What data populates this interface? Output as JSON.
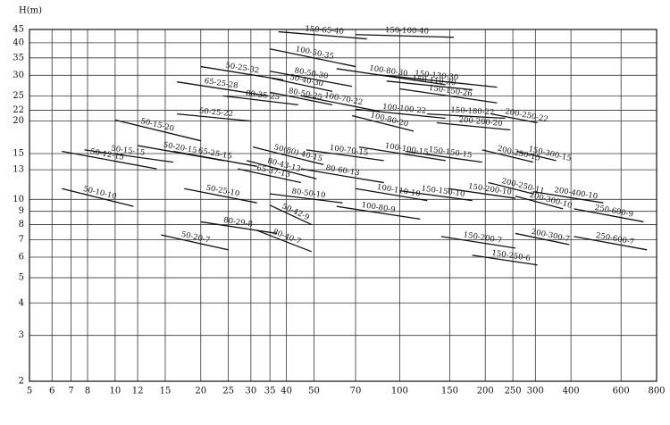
{
  "chart_data": {
    "type": "line",
    "y_label": "H(m)",
    "log_x": true,
    "log_y": true,
    "grid": true,
    "color": "#111111",
    "xlim": [
      5,
      800
    ],
    "ylim": [
      2,
      45
    ],
    "xticks": [
      5,
      6,
      7,
      8,
      10,
      12,
      15,
      20,
      25,
      30,
      35,
      40,
      50,
      70,
      100,
      150,
      200,
      250,
      300,
      400,
      600,
      800
    ],
    "yticks": [
      2,
      3,
      4,
      5,
      6,
      7,
      8,
      9,
      10,
      13,
      15,
      20,
      22,
      25,
      30,
      35,
      40,
      45
    ],
    "series": [
      {
        "name": "150-65-40",
        "x": [
          37.5,
          76.7
        ],
        "values": [
          44.1,
          41.4
        ]
      },
      {
        "name": "150-100-40",
        "x": [
          70,
          155
        ],
        "values": [
          43,
          42
        ]
      },
      {
        "name": "100-50-35",
        "x": [
          35,
          70
        ],
        "values": [
          37.9,
          32.4
        ]
      },
      {
        "name": "50-25-32",
        "x": [
          20,
          39
        ],
        "values": [
          32.4,
          28.8
        ]
      },
      {
        "name": "80-50-30",
        "x": [
          35,
          68
        ],
        "values": [
          31.1,
          27.2
        ]
      },
      {
        "name": "100-80-30",
        "x": [
          60,
          145
        ],
        "values": [
          31.8,
          27.6
        ]
      },
      {
        "name": "150-130-30",
        "x": [
          85,
          220
        ],
        "values": [
          30.1,
          27
        ]
      },
      {
        "name": "65-25-28",
        "x": [
          16.5,
          34.5
        ],
        "values": [
          28.3,
          25
        ]
      },
      {
        "name": "50-40-30",
        "x": [
          35.5,
          58
        ],
        "values": [
          29.2,
          26
        ]
      },
      {
        "name": "150-110-30",
        "x": [
          90,
          180
        ],
        "values": [
          28.5,
          26.4
        ]
      },
      {
        "name": "150-150-26",
        "x": [
          100,
          220
        ],
        "values": [
          26.6,
          23.5
        ]
      },
      {
        "name": "80-50-25",
        "x": [
          35,
          58
        ],
        "values": [
          25.8,
          23.1
        ]
      },
      {
        "name": "100-70-22",
        "x": [
          45,
          85
        ],
        "values": [
          25,
          21.8
        ]
      },
      {
        "name": "80-35-25",
        "x": [
          24,
          44
        ],
        "values": [
          25,
          23.1
        ]
      },
      {
        "name": "50-25-22",
        "x": [
          16.5,
          30
        ],
        "values": [
          21.3,
          20
        ]
      },
      {
        "name": "100-100-22",
        "x": [
          70,
          145
        ],
        "values": [
          22.2,
          20.5
        ]
      },
      {
        "name": "150-180-22",
        "x": [
          125,
          235
        ],
        "values": [
          21.3,
          20.5
        ]
      },
      {
        "name": "200-250-22",
        "x": [
          210,
          305
        ],
        "values": [
          21.3,
          19.7
        ]
      },
      {
        "name": "100-80-20",
        "x": [
          68,
          112
        ],
        "values": [
          21,
          18.3
        ]
      },
      {
        "name": "200-200-20",
        "x": [
          135,
          245
        ],
        "values": [
          19.7,
          18.5
        ]
      },
      {
        "name": "50-15-20",
        "x": [
          10,
          20
        ],
        "values": [
          20.2,
          16.8
        ]
      },
      {
        "name": "50-15-15",
        "x": [
          7.8,
          16
        ],
        "values": [
          15.5,
          13.9
        ]
      },
      {
        "name": "50-20-15",
        "x": [
          12,
          24
        ],
        "values": [
          16.1,
          14.1
        ]
      },
      {
        "name": "65-25-15",
        "x": [
          16,
          31.5
        ],
        "values": [
          15.3,
          13.4
        ]
      },
      {
        "name": "50-12-15",
        "x": [
          6.5,
          14
        ],
        "values": [
          15.3,
          13.1
        ]
      },
      {
        "name": "50(80)-40-15",
        "x": [
          30.5,
          54
        ],
        "values": [
          15.9,
          13.6
        ]
      },
      {
        "name": "100-70-15",
        "x": [
          47,
          88
        ],
        "values": [
          15.5,
          14.1
        ]
      },
      {
        "name": "100-100-15",
        "x": [
          72,
          145
        ],
        "values": [
          15.9,
          14.1
        ]
      },
      {
        "name": "150-150-15",
        "x": [
          105,
          195
        ],
        "values": [
          15.3,
          13.9
        ]
      },
      {
        "name": "200-250-15",
        "x": [
          195,
          295
        ],
        "values": [
          15.5,
          13.9
        ]
      },
      {
        "name": "150-300-15",
        "x": [
          258,
          355
        ],
        "values": [
          15.3,
          14.1
        ]
      },
      {
        "name": "80-43-13",
        "x": [
          29,
          51
        ],
        "values": [
          14.1,
          12
        ]
      },
      {
        "name": "65-37-13",
        "x": [
          27,
          45
        ],
        "values": [
          13.1,
          11.6
        ]
      },
      {
        "name": "80-60-13",
        "x": [
          45,
          88
        ],
        "values": [
          13.1,
          11.6
        ]
      },
      {
        "name": "80-50-10",
        "x": [
          35,
          63
        ],
        "values": [
          10.5,
          9.7
        ]
      },
      {
        "name": "50-25-10",
        "x": [
          17.5,
          31.5
        ],
        "values": [
          11,
          9.7
        ]
      },
      {
        "name": "50-10-10",
        "x": [
          6.5,
          11.6
        ],
        "values": [
          11,
          9.4
        ]
      },
      {
        "name": "100-110-10",
        "x": [
          70,
          125
        ],
        "values": [
          11,
          9.9
        ]
      },
      {
        "name": "150-150-10",
        "x": [
          100,
          180
        ],
        "values": [
          10.8,
          9.9
        ]
      },
      {
        "name": "150-200-10",
        "x": [
          148,
          255
        ],
        "values": [
          11,
          10.1
        ]
      },
      {
        "name": "200-250-11",
        "x": [
          205,
          295
        ],
        "values": [
          11.6,
          10.5
        ]
      },
      {
        "name": "200-300-10",
        "x": [
          255,
          375
        ],
        "values": [
          10.3,
          9.2
        ]
      },
      {
        "name": "200-400-10",
        "x": [
          295,
          520
        ],
        "values": [
          10.7,
          9.7
        ]
      },
      {
        "name": "50-42-9",
        "x": [
          35,
          49
        ],
        "values": [
          9.5,
          8
        ]
      },
      {
        "name": "100-80-9",
        "x": [
          60,
          118
        ],
        "values": [
          9.4,
          8.4
        ]
      },
      {
        "name": "250-600-9",
        "x": [
          410,
          720
        ],
        "values": [
          9.2,
          8.2
        ]
      },
      {
        "name": "80-29-8",
        "x": [
          20,
          37
        ],
        "values": [
          8.2,
          7.4
        ]
      },
      {
        "name": "80-40-7",
        "x": [
          31.5,
          49
        ],
        "values": [
          7.6,
          6.3
        ]
      },
      {
        "name": "50-20-7",
        "x": [
          14.5,
          25
        ],
        "values": [
          7.3,
          6.4
        ]
      },
      {
        "name": "150-200-7",
        "x": [
          140,
          255
        ],
        "values": [
          7.2,
          6.5
        ]
      },
      {
        "name": "200-300-7",
        "x": [
          255,
          395
        ],
        "values": [
          7.4,
          6.7
        ]
      },
      {
        "name": "250-600-7",
        "x": [
          410,
          740
        ],
        "values": [
          7.2,
          6.4
        ]
      },
      {
        "name": "150-250-6",
        "x": [
          180,
          305
        ],
        "values": [
          6.1,
          5.6
        ]
      }
    ]
  }
}
